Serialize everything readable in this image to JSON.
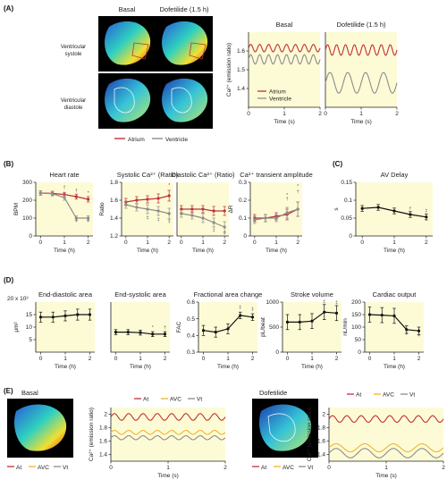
{
  "colors": {
    "atrium": "#c0303a",
    "ventricle": "#8c8c8c",
    "mean": "#111111",
    "avc": "#f0b429",
    "bg": "#fdfbd6"
  },
  "panels": {
    "A": "(A)",
    "B": "(B)",
    "C": "(C)",
    "D": "(D)",
    "E": "(E)"
  },
  "heart_images": {
    "col_labels": [
      "Basal",
      "Dofetilide (1.5 h)"
    ],
    "row_labels": [
      [
        "Ventricular",
        "systole"
      ],
      [
        "Ventricular",
        "diastole"
      ]
    ],
    "a_legend": [
      {
        "label": "Atrium",
        "color_key": "atrium"
      },
      {
        "label": "Ventricle",
        "color_key": "ventricle"
      }
    ],
    "e_legend": [
      {
        "label": "At",
        "color_key": "atrium"
      },
      {
        "label": "AVC",
        "color_key": "avc"
      },
      {
        "label": "Vt",
        "color_key": "ventricle"
      }
    ],
    "e_labels": [
      "Basal",
      "Dofetilide"
    ]
  },
  "chart_data": [
    {
      "id": "A_basal",
      "type": "line",
      "title": "Basal",
      "xlabel": "Time (s)",
      "ylabel": "Ca²⁺ (emission ratio)",
      "xlim": [
        0,
        2
      ],
      "ylim": [
        1.3,
        1.7
      ],
      "xticks": [
        0,
        1,
        2
      ],
      "yticks": [
        1.4,
        1.5,
        1.6
      ],
      "series": [
        {
          "name": "Atrium",
          "color_key": "atrium",
          "kind": "sine",
          "base": 1.615,
          "amp": 0.02,
          "cycles": 8
        },
        {
          "name": "Ventricle",
          "color_key": "ventricle",
          "kind": "sine",
          "base": 1.555,
          "amp": 0.025,
          "cycles": 8
        }
      ],
      "legend": [
        {
          "label": "Atrium",
          "color_key": "atrium"
        },
        {
          "label": "Ventricle",
          "color_key": "ventricle"
        }
      ]
    },
    {
      "id": "A_dofe",
      "type": "line",
      "title": "Dofetilide (1.5 h)",
      "xlabel": "Time (s)",
      "xlim": [
        0,
        2
      ],
      "ylim": [
        1.3,
        1.7
      ],
      "xticks": [
        0,
        1,
        2
      ],
      "yticks": [],
      "series": [
        {
          "name": "Atrium",
          "color_key": "atrium",
          "kind": "sine",
          "base": 1.605,
          "amp": 0.028,
          "cycles": 8
        },
        {
          "name": "Ventricle",
          "color_key": "ventricle",
          "kind": "sine",
          "base": 1.43,
          "amp": 0.055,
          "cycles": 4
        }
      ]
    },
    {
      "id": "B_hr",
      "type": "line",
      "title": "Heart rate",
      "xlabel": "Time (h)",
      "ylabel": "BPM",
      "xlim": [
        -0.2,
        2.2
      ],
      "ylim": [
        0,
        300
      ],
      "xticks": [
        0,
        1,
        2
      ],
      "yticks": [
        0,
        100,
        200,
        300
      ],
      "series": [
        {
          "name": "Atrium",
          "color_key": "atrium",
          "x": [
            0,
            0.5,
            1,
            1.5,
            2
          ],
          "y": [
            240,
            238,
            232,
            220,
            205
          ],
          "err": [
            12,
            12,
            12,
            14,
            15
          ]
        },
        {
          "name": "Ventricle",
          "color_key": "ventricle",
          "x": [
            0,
            0.5,
            1,
            1.5,
            2
          ],
          "y": [
            240,
            236,
            215,
            100,
            100
          ],
          "err": [
            12,
            12,
            15,
            12,
            12
          ]
        }
      ],
      "marks": [
        {
          "x": 1,
          "y": 262,
          "t": "†"
        },
        {
          "x": 1.5,
          "y": 246,
          "t": "†"
        },
        {
          "x": 2,
          "y": 232,
          "t": "*"
        },
        {
          "x": 1.5,
          "y": 80,
          "t": "‡"
        },
        {
          "x": 2,
          "y": 80,
          "t": "‡"
        }
      ]
    },
    {
      "id": "B_sys",
      "type": "line",
      "title": "Systolic Ca²⁺ (Ratio)",
      "xlabel": "Time (h)",
      "ylabel": "Ratio",
      "xlim": [
        -0.2,
        2.2
      ],
      "ylim": [
        1.2,
        1.8
      ],
      "xticks": [
        0,
        1,
        2
      ],
      "yticks": [
        1.2,
        1.4,
        1.6,
        1.8
      ],
      "series": [
        {
          "name": "Atrium",
          "color_key": "atrium",
          "x": [
            0,
            0.5,
            1,
            1.5,
            2
          ],
          "y": [
            1.58,
            1.6,
            1.61,
            1.62,
            1.65
          ],
          "err": [
            0.04,
            0.04,
            0.04,
            0.05,
            0.06
          ]
        },
        {
          "name": "Ventricle",
          "color_key": "ventricle",
          "x": [
            0,
            0.5,
            1,
            1.5,
            2
          ],
          "y": [
            1.55,
            1.52,
            1.5,
            1.48,
            1.45
          ],
          "err": [
            0.04,
            0.04,
            0.05,
            0.05,
            0.06
          ]
        }
      ],
      "marks": [
        {
          "x": 2,
          "y": 1.75,
          "t": "*"
        },
        {
          "x": 1,
          "y": 1.39,
          "t": "‡"
        },
        {
          "x": 1.5,
          "y": 1.37,
          "t": "‡"
        },
        {
          "x": 2,
          "y": 1.35,
          "t": "‡"
        }
      ]
    },
    {
      "id": "B_dia",
      "type": "line",
      "title": "Diastolic Ca²⁺ (Ratio)",
      "xlabel": "Time (h)",
      "xlim": [
        -0.2,
        2.2
      ],
      "ylim": [
        1.2,
        1.8
      ],
      "xticks": [
        0,
        1,
        2
      ],
      "yticks": [],
      "series": [
        {
          "name": "Atrium",
          "color_key": "atrium",
          "x": [
            0,
            0.5,
            1,
            1.5,
            2
          ],
          "y": [
            1.5,
            1.5,
            1.5,
            1.48,
            1.48
          ],
          "err": [
            0.04,
            0.04,
            0.04,
            0.05,
            0.05
          ]
        },
        {
          "name": "Ventricle",
          "color_key": "ventricle",
          "x": [
            0,
            0.5,
            1,
            1.5,
            2
          ],
          "y": [
            1.45,
            1.43,
            1.4,
            1.35,
            1.3
          ],
          "err": [
            0.04,
            0.04,
            0.05,
            0.05,
            0.06
          ]
        }
      ],
      "marks": [
        {
          "x": 1.5,
          "y": 1.25,
          "t": "‡"
        },
        {
          "x": 2,
          "y": 1.22,
          "t": "‡"
        }
      ]
    },
    {
      "id": "B_amp",
      "type": "line",
      "title": "Ca²⁺ transient amplitude",
      "xlabel": "Time (h)",
      "ylabel": "ΔR",
      "xlim": [
        -0.2,
        2.2
      ],
      "ylim": [
        0,
        0.3
      ],
      "xticks": [
        0,
        1,
        2
      ],
      "yticks": [
        0,
        0.1,
        0.2,
        0.3
      ],
      "series": [
        {
          "name": "Atrium",
          "color_key": "atrium",
          "x": [
            0,
            0.5,
            1,
            1.5,
            2
          ],
          "y": [
            0.1,
            0.1,
            0.11,
            0.12,
            0.15
          ],
          "err": [
            0.02,
            0.02,
            0.02,
            0.03,
            0.04
          ]
        },
        {
          "name": "Ventricle",
          "color_key": "ventricle",
          "x": [
            0,
            0.5,
            1,
            1.5,
            2
          ],
          "y": [
            0.09,
            0.1,
            0.1,
            0.13,
            0.15
          ],
          "err": [
            0.02,
            0.02,
            0.02,
            0.03,
            0.04
          ]
        }
      ],
      "marks": [
        {
          "x": 1.5,
          "y": 0.2,
          "t": "†"
        },
        {
          "x": 1.5,
          "y": 0.22,
          "t": "*"
        },
        {
          "x": 2,
          "y": 0.24,
          "t": "†"
        },
        {
          "x": 2,
          "y": 0.27,
          "t": "*"
        }
      ]
    },
    {
      "id": "C_av",
      "type": "line",
      "title": "AV Delay",
      "xlabel": "Time (h)",
      "ylabel": "s",
      "xlim": [
        -0.2,
        2.2
      ],
      "ylim": [
        0,
        0.15
      ],
      "xticks": [
        0,
        1,
        2
      ],
      "yticks": [
        0,
        0.05,
        0.1,
        0.15
      ],
      "series": [
        {
          "name": "AV delay",
          "color_key": "mean",
          "x": [
            0,
            0.5,
            1,
            1.5,
            2
          ],
          "y": [
            0.077,
            0.08,
            0.07,
            0.06,
            0.053
          ],
          "err": [
            0.008,
            0.008,
            0.008,
            0.008,
            0.008
          ]
        }
      ],
      "marks": [
        {
          "x": 1.5,
          "y": 0.073,
          "t": "†"
        },
        {
          "x": 2,
          "y": 0.066,
          "t": "‡"
        }
      ]
    },
    {
      "id": "D_eda",
      "type": "line",
      "title": "End-diastolic area",
      "xlabel": "Time (h)",
      "ylabel": "μm²",
      "y_multiplier": "20 x 10³",
      "xlim": [
        -0.2,
        2.2
      ],
      "ylim": [
        0,
        20
      ],
      "xticks": [
        0,
        1,
        2
      ],
      "yticks": [
        5,
        10,
        15
      ],
      "series": [
        {
          "name": "EDA",
          "color_key": "mean",
          "x": [
            0,
            0.5,
            1,
            1.5,
            2
          ],
          "y": [
            14,
            14,
            14.5,
            15,
            15
          ],
          "err": [
            2,
            2,
            2,
            2.2,
            2.2
          ]
        }
      ]
    },
    {
      "id": "D_esa",
      "type": "line",
      "title": "End-systolic area",
      "xlabel": "Time (h)",
      "xlim": [
        -0.2,
        2.2
      ],
      "ylim": [
        0,
        20
      ],
      "xticks": [
        0,
        1,
        2
      ],
      "yticks": [],
      "series": [
        {
          "name": "ESA",
          "color_key": "mean",
          "x": [
            0,
            0.5,
            1,
            1.5,
            2
          ],
          "y": [
            8,
            8,
            7.8,
            7.2,
            7.2
          ],
          "err": [
            1,
            1,
            1,
            1,
            1
          ]
        }
      ],
      "marks": [
        {
          "x": 1.5,
          "y": 9.2,
          "t": "*"
        },
        {
          "x": 2,
          "y": 9.2,
          "t": "†"
        }
      ]
    },
    {
      "id": "D_fac",
      "type": "line",
      "title": "Fractional area change",
      "xlabel": "Time (h)",
      "ylabel": "FAC",
      "xlim": [
        -0.2,
        2.2
      ],
      "ylim": [
        0.3,
        0.6
      ],
      "xticks": [
        0,
        1,
        2
      ],
      "yticks": [
        0.3,
        0.4,
        0.5,
        0.6
      ],
      "series": [
        {
          "name": "FAC",
          "color_key": "mean",
          "x": [
            0,
            0.5,
            1,
            1.5,
            2
          ],
          "y": [
            0.43,
            0.42,
            0.44,
            0.52,
            0.51
          ],
          "err": [
            0.03,
            0.03,
            0.03,
            0.02,
            0.02
          ]
        }
      ],
      "marks": [
        {
          "x": 1.5,
          "y": 0.56,
          "t": "‡"
        },
        {
          "x": 2,
          "y": 0.55,
          "t": "‡"
        }
      ]
    },
    {
      "id": "D_sv",
      "type": "line",
      "title": "Stroke volume",
      "xlabel": "Time (h)",
      "ylabel": "pL/beat",
      "xlim": [
        -0.2,
        2.2
      ],
      "ylim": [
        0,
        1000
      ],
      "xticks": [
        0,
        1,
        2
      ],
      "yticks": [
        0,
        500,
        1000
      ],
      "series": [
        {
          "name": "SV",
          "color_key": "mean",
          "x": [
            0,
            0.5,
            1,
            1.5,
            2
          ],
          "y": [
            600,
            600,
            620,
            800,
            780
          ],
          "err": [
            150,
            150,
            150,
            150,
            150
          ]
        }
      ],
      "marks": [
        {
          "x": 1.5,
          "y": 980,
          "t": "‡"
        },
        {
          "x": 2,
          "y": 960,
          "t": "‡"
        }
      ]
    },
    {
      "id": "D_co",
      "type": "line",
      "title": "Cardiac output",
      "xlabel": "Time (h)",
      "ylabel": "nL/min",
      "xlim": [
        -0.2,
        2.2
      ],
      "ylim": [
        0,
        200
      ],
      "xticks": [
        0,
        1,
        2
      ],
      "yticks": [
        0,
        50,
        100,
        150,
        200
      ],
      "series": [
        {
          "name": "CO",
          "color_key": "mean",
          "x": [
            0,
            0.5,
            1,
            1.5,
            2
          ],
          "y": [
            150,
            148,
            145,
            90,
            85
          ],
          "err": [
            30,
            30,
            30,
            15,
            15
          ]
        }
      ],
      "marks": [
        {
          "x": 1.5,
          "y": 70,
          "t": "‡"
        },
        {
          "x": 2,
          "y": 65,
          "t": "‡"
        }
      ]
    },
    {
      "id": "E_basal",
      "type": "line",
      "xlabel": "Time (s)",
      "ylabel": "Ca²⁺ (emission ratio)",
      "xlim": [
        0,
        2
      ],
      "ylim": [
        1.3,
        2.1
      ],
      "xticks": [
        0,
        1,
        2
      ],
      "yticks": [
        1.4,
        1.6,
        1.8,
        2.0
      ],
      "series": [
        {
          "name": "At",
          "color_key": "atrium",
          "kind": "sine",
          "base": 1.96,
          "amp": 0.05,
          "cycles": 8
        },
        {
          "name": "AVC",
          "color_key": "avc",
          "kind": "sine",
          "base": 1.73,
          "amp": 0.03,
          "cycles": 8
        },
        {
          "name": "Vt",
          "color_key": "ventricle",
          "kind": "sine",
          "base": 1.65,
          "amp": 0.03,
          "cycles": 8
        }
      ],
      "legend": [
        {
          "label": "At",
          "color_key": "atrium"
        },
        {
          "label": "AVC",
          "color_key": "avc"
        },
        {
          "label": "Vt",
          "color_key": "ventricle"
        }
      ]
    },
    {
      "id": "E_dofe",
      "type": "line",
      "xlabel": "Time (s)",
      "ylabel": "Ca²⁺ (emission ratio)",
      "xlim": [
        0,
        2
      ],
      "ylim": [
        1.3,
        2.1
      ],
      "xticks": [
        0,
        1,
        2
      ],
      "yticks": [
        1.4,
        1.6,
        1.8,
        2.0
      ],
      "series": [
        {
          "name": "At",
          "color_key": "atrium",
          "kind": "sine",
          "base": 1.93,
          "amp": 0.05,
          "cycles": 8
        },
        {
          "name": "AVC",
          "color_key": "avc",
          "kind": "sine",
          "base": 1.5,
          "amp": 0.06,
          "cycles": 4
        },
        {
          "name": "Vt",
          "color_key": "ventricle",
          "kind": "sine",
          "base": 1.42,
          "amp": 0.07,
          "cycles": 4
        }
      ],
      "legend": [
        {
          "label": "At",
          "color_key": "atrium"
        },
        {
          "label": "AVC",
          "color_key": "avc"
        },
        {
          "label": "Vt",
          "color_key": "ventricle"
        }
      ]
    }
  ]
}
